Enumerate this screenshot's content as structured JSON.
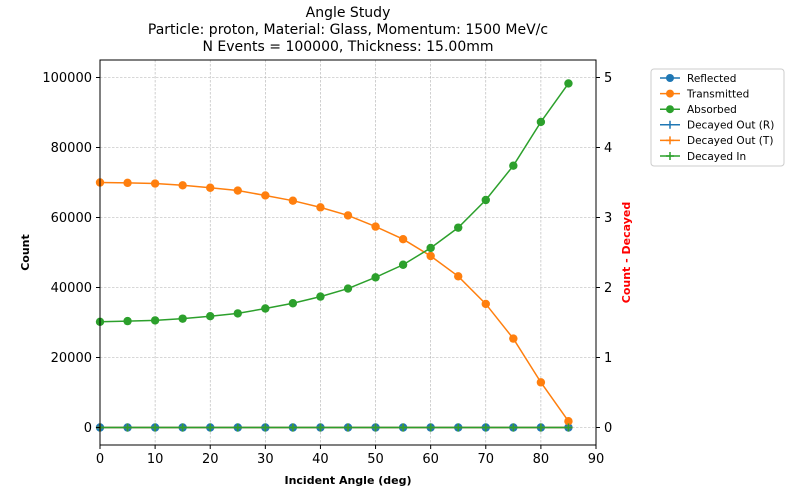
{
  "chart_data": {
    "type": "line",
    "title_lines": [
      "Angle Study",
      "Particle: proton, Material: Glass, Momentum: 1500 MeV/c",
      "N Events = 100000, Thickness: 15.00mm"
    ],
    "xlabel": "Incident Angle (deg)",
    "ylabel": "Count",
    "y2label": "Count - Decayed",
    "y2label_color": "#ff0000",
    "xlim": [
      0,
      90
    ],
    "ylim": [
      -5000,
      105000
    ],
    "y2lim": [
      -0.25,
      5.25
    ],
    "xticks": [
      "0",
      "10",
      "20",
      "30",
      "40",
      "50",
      "60",
      "70",
      "80",
      "90"
    ],
    "yticks": [
      "0",
      "20000",
      "40000",
      "60000",
      "80000",
      "100000"
    ],
    "y2ticks": [
      "0",
      "1",
      "2",
      "3",
      "4",
      "5"
    ],
    "grid": true,
    "legend_position": "outside-right",
    "x": [
      0,
      5,
      10,
      15,
      20,
      25,
      30,
      35,
      40,
      45,
      50,
      55,
      60,
      65,
      70,
      75,
      80,
      85
    ],
    "series": [
      {
        "name": "Reflected",
        "axis": "left",
        "marker": "circle",
        "color": "#1f77b4",
        "values": [
          0,
          0,
          0,
          0,
          0,
          0,
          0,
          0,
          0,
          0,
          0,
          0,
          0,
          0,
          0,
          0,
          0,
          0
        ]
      },
      {
        "name": "Transmitted",
        "axis": "left",
        "marker": "circle",
        "color": "#ff7f0e",
        "values": [
          70000,
          69900,
          69700,
          69200,
          68500,
          67700,
          66300,
          64800,
          62900,
          60600,
          57400,
          53800,
          49000,
          43200,
          35300,
          25400,
          12900,
          1800
        ]
      },
      {
        "name": "Absorbed",
        "axis": "left",
        "marker": "circle",
        "color": "#2ca02c",
        "values": [
          30200,
          30400,
          30600,
          31100,
          31800,
          32600,
          34000,
          35500,
          37400,
          39700,
          42900,
          46500,
          51300,
          57100,
          65000,
          74800,
          87300,
          98300
        ]
      },
      {
        "name": "Decayed Out (R)",
        "axis": "right",
        "marker": "plus",
        "color": "#1f77b4",
        "values": [
          0,
          0,
          0,
          0,
          0,
          0,
          0,
          0,
          0,
          0,
          0,
          0,
          0,
          0,
          0,
          0,
          0,
          0
        ]
      },
      {
        "name": "Decayed Out (T)",
        "axis": "right",
        "marker": "plus",
        "color": "#ff7f0e",
        "values": [
          0,
          0,
          0,
          0,
          0,
          0,
          0,
          0,
          0,
          0,
          0,
          0,
          0,
          0,
          0,
          0,
          0,
          0
        ]
      },
      {
        "name": "Decayed In",
        "axis": "right",
        "marker": "plus",
        "color": "#2ca02c",
        "values": [
          0,
          0,
          0,
          0,
          0,
          0,
          0,
          0,
          0,
          0,
          0,
          0,
          0,
          0,
          0,
          0,
          0,
          0
        ]
      }
    ]
  }
}
